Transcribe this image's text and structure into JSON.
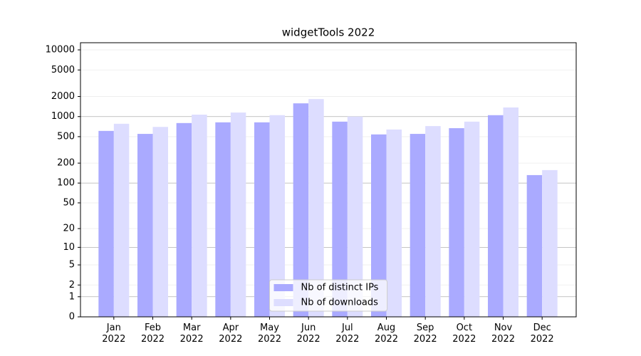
{
  "chart_data": {
    "type": "bar",
    "title": "widgetTools 2022",
    "categories": [
      "Jan\n2022",
      "Feb\n2022",
      "Mar\n2022",
      "Apr\n2022",
      "May\n2022",
      "Jun\n2022",
      "Jul\n2022",
      "Aug\n2022",
      "Sep\n2022",
      "Oct\n2022",
      "Nov\n2022",
      "Dec\n2022"
    ],
    "series": [
      {
        "name": "Nb of distinct IPs",
        "color": "#aaaaff",
        "values": [
          610,
          550,
          800,
          820,
          820,
          1580,
          840,
          540,
          550,
          670,
          1050,
          132
        ]
      },
      {
        "name": "Nb of downloads",
        "color": "#ddddff",
        "values": [
          780,
          700,
          1070,
          1150,
          1050,
          1830,
          1000,
          640,
          720,
          840,
          1370,
          157
        ]
      }
    ],
    "yscale": "log1p",
    "ylim": [
      0,
      12800
    ],
    "yticks": [
      0,
      1,
      2,
      5,
      10,
      20,
      50,
      100,
      200,
      500,
      1000,
      2000,
      5000,
      10000
    ],
    "grid": true,
    "legend": "lower center"
  }
}
